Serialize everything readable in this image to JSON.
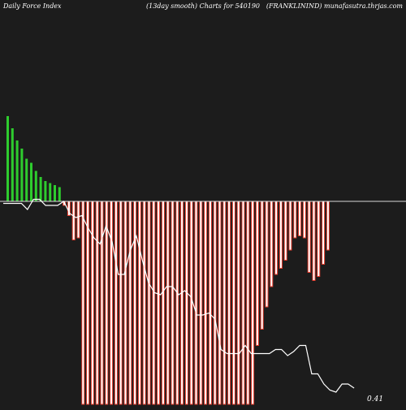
{
  "header": {
    "left": "Daily Force  Index",
    "center": "(13day smooth) Charts for 540190",
    "right": "(FRANKLININD) munafasutra.thrjas.com"
  },
  "colors": {
    "background": "#1c1c1c",
    "positive_bar": "#2ecc2e",
    "negative_bar": "#e83a2a",
    "negative_bar_core": "#ffffff",
    "zero_line": "#d8d8d8",
    "smooth_line": "#ffffff",
    "text": "#ffffff"
  },
  "chart_data": {
    "type": "bar",
    "title": "",
    "xlabel": "",
    "ylabel": "",
    "ylim": [
      -100,
      45
    ],
    "grid": false,
    "series": [
      {
        "kind": "bar",
        "values": [
          42,
          36,
          30,
          26,
          21,
          19,
          15,
          12,
          10,
          9,
          8,
          7,
          -2,
          -7,
          -19,
          -18,
          -100,
          -100,
          -100,
          -100,
          -100,
          -100,
          -100,
          -100,
          -100,
          -100,
          -100,
          -100,
          -100,
          -100,
          -100,
          -100,
          -100,
          -100,
          -100,
          -100,
          -100,
          -100,
          -100,
          -100,
          -100,
          -100,
          -100,
          -100,
          -100,
          -100,
          -100,
          -100,
          -100,
          -100,
          -100,
          -100,
          -100,
          -71,
          -63,
          -52,
          -42,
          -36,
          -33,
          -29,
          -24,
          -18,
          -17,
          -18,
          -35,
          -39,
          -37,
          -31,
          -24
        ]
      },
      {
        "kind": "line",
        "values": [
          -1,
          -1,
          -1,
          -1,
          -4,
          1,
          1,
          -2,
          -2,
          -2,
          0,
          -6,
          -8,
          -7,
          -13,
          -18,
          -21,
          -12,
          -20,
          -36,
          -36,
          -24,
          -17,
          -29,
          -40,
          -45,
          -46,
          -42,
          -42,
          -46,
          -44,
          -47,
          -56,
          -56,
          -55,
          -58,
          -73,
          -75,
          -75,
          -75,
          -71,
          -75,
          -75,
          -75,
          -75,
          -73,
          -73,
          -76,
          -74,
          -71,
          -71,
          -85,
          -85,
          -90,
          -93,
          -94,
          -90,
          -90,
          -92
        ]
      }
    ],
    "annotations": [
      "0.41"
    ]
  }
}
